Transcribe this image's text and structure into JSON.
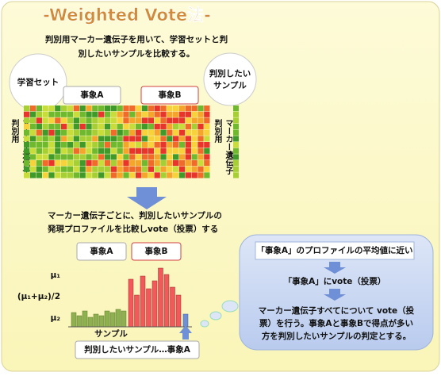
{
  "title": "-Weighted Vote法-",
  "intro": [
    "判別用マーカー遺伝子を用いて、学習セットと判",
    "別したいサンプルを比較する。"
  ],
  "training_set": "学習セット",
  "target_sample": [
    "判別したい",
    "サンプル"
  ],
  "group_a": "事象A",
  "group_b": "事象B",
  "gene_axis": [
    "判別用",
    "マーカー遺伝子"
  ],
  "step2": [
    "マーカー遺伝子ごとに、判別したいサンプルの",
    "発現プロファイルを比較しvote（投票）する"
  ],
  "chart": {
    "group_a": "事象A",
    "group_b": "事象B",
    "y_labels": [
      "μ₁",
      "(μ₁+μ₂)/2",
      "μ₂"
    ],
    "x_label": "サンプル",
    "result": "判別したいサンプル…事象A"
  },
  "panel": {
    "condition": "「事象A」のプロファイルの平均値に近い",
    "vote": "「事象A」にvote（投票）",
    "conclusion": [
      "マーカー遺伝子すべてについて vote（投",
      "票）を行う。事象Aと事象Bで得点が多い",
      "方を判別したいサンプルの判定とする。"
    ]
  }
}
